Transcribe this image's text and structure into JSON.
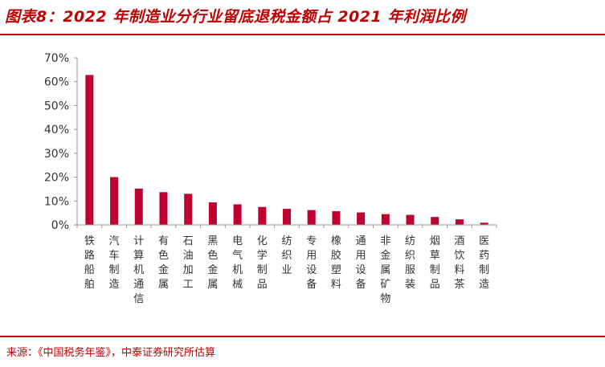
{
  "header": {
    "title": "图表8：2022 年制造业分行业留底退税金额占 2021 年利润比例"
  },
  "footer": {
    "source": "来源：《中国税务年鉴》，中泰证券研究所估算"
  },
  "colors": {
    "accent": "#c00000",
    "bar": "#c0002f",
    "axis": "#999999",
    "text": "#333333"
  },
  "chart_data": {
    "type": "bar",
    "title": "",
    "xlabel": "",
    "ylabel": "",
    "ylim": [
      0,
      70
    ],
    "y_unit": "%",
    "y_ticks": [
      "0%",
      "10%",
      "20%",
      "30%",
      "40%",
      "50%",
      "60%",
      "70%"
    ],
    "grid": false,
    "categories": [
      "铁路船舶",
      "汽车制造",
      "计算机通信",
      "有色金属",
      "石油加工",
      "黑色金属",
      "电气机械",
      "化学制品",
      "纺织业",
      "专用设备",
      "橡胶塑料",
      "通用设备",
      "非金属矿物",
      "纺织服装",
      "烟草制品",
      "酒饮料茶",
      "医药制造"
    ],
    "values": [
      62.8,
      20.0,
      15.2,
      13.7,
      13.0,
      9.4,
      8.6,
      7.5,
      6.7,
      6.2,
      5.7,
      5.2,
      4.5,
      4.2,
      3.3,
      2.3,
      0.9
    ]
  }
}
